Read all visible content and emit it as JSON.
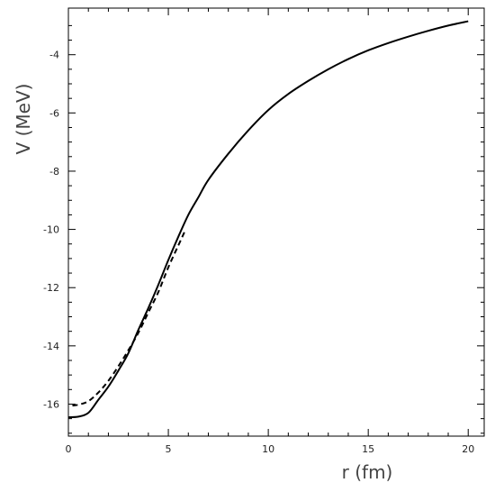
{
  "chart_data": {
    "type": "line",
    "title": "",
    "xlabel": "r (fm)",
    "ylabel": "V (MeV)",
    "xlim": [
      0,
      20.8
    ],
    "ylim": [
      -17.1,
      -2.4
    ],
    "xticks": [
      0,
      5,
      10,
      15,
      20
    ],
    "yticks": [
      -16,
      -14,
      -12,
      -10,
      -8,
      -6,
      -4
    ],
    "x_tick_labels": [
      "0",
      "5",
      "10",
      "15",
      "20"
    ],
    "y_tick_labels": [
      "-16",
      "-14",
      "-12",
      "-10",
      "-8",
      "-6",
      "-4"
    ],
    "grid": false,
    "legend": "none",
    "series": [
      {
        "style": "solid",
        "color": "#000000",
        "x": [
          0,
          0.5,
          1,
          1.5,
          2,
          2.5,
          3,
          3.5,
          4,
          4.5,
          5,
          5.5,
          6,
          6.5,
          7,
          8,
          9,
          10,
          11,
          12,
          13,
          14,
          15,
          16,
          17,
          18,
          19,
          20
        ],
        "y": [
          -16.45,
          -16.43,
          -16.3,
          -15.85,
          -15.4,
          -14.85,
          -14.25,
          -13.45,
          -12.7,
          -11.9,
          -11.05,
          -10.25,
          -9.5,
          -8.9,
          -8.3,
          -7.4,
          -6.6,
          -5.9,
          -5.35,
          -4.9,
          -4.5,
          -4.15,
          -3.85,
          -3.6,
          -3.38,
          -3.18,
          -3.0,
          -2.85
        ]
      },
      {
        "style": "dashed",
        "color": "#000000",
        "x": [
          0.2,
          0.5,
          1,
          1.5,
          2,
          2.5,
          3,
          3.5,
          4,
          4.5,
          5,
          5.5,
          5.8
        ],
        "y": [
          -16.05,
          -16.02,
          -15.9,
          -15.6,
          -15.2,
          -14.7,
          -14.15,
          -13.55,
          -12.85,
          -12.15,
          -11.3,
          -10.55,
          -10.1
        ]
      }
    ]
  }
}
